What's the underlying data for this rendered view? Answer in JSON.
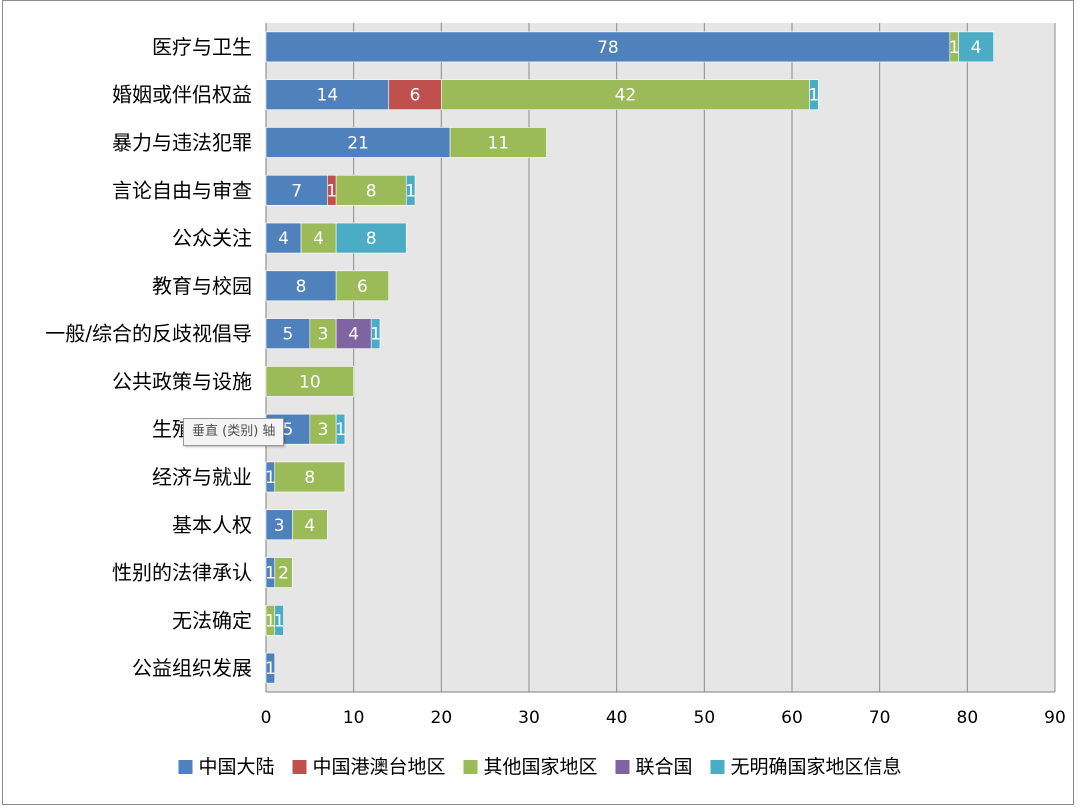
{
  "chart_data": {
    "type": "bar",
    "orientation": "horizontal",
    "stacked": true,
    "categories": [
      "医疗与卫生",
      "婚姻或伴侣权益",
      "暴力与违法犯罪",
      "言论自由与审查",
      "公众关注",
      "教育与校园",
      "一般/综合的反歧视倡导",
      "公共政策与设施",
      "生殖与养育",
      "经济与就业",
      "基本人权",
      "性别的法律承认",
      "无法确定",
      "公益组织发展"
    ],
    "series": [
      {
        "name": "中国大陆",
        "color": "#4f81bd",
        "values": [
          78,
          14,
          21,
          7,
          4,
          8,
          5,
          0,
          5,
          1,
          3,
          1,
          0,
          1
        ]
      },
      {
        "name": "中国港澳台地区",
        "color": "#c0504d",
        "values": [
          0,
          6,
          0,
          1,
          0,
          0,
          0,
          0,
          0,
          0,
          0,
          0,
          0,
          0
        ]
      },
      {
        "name": "其他国家地区",
        "color": "#9bbb59",
        "values": [
          1,
          42,
          11,
          8,
          4,
          6,
          3,
          10,
          3,
          8,
          4,
          2,
          1,
          0
        ]
      },
      {
        "name": "联合国",
        "color": "#8064a2",
        "values": [
          0,
          0,
          0,
          0,
          0,
          0,
          4,
          0,
          0,
          0,
          0,
          0,
          0,
          0
        ]
      },
      {
        "name": "无明确国家地区信息",
        "color": "#4bacc6",
        "values": [
          4,
          1,
          0,
          1,
          8,
          0,
          1,
          0,
          1,
          0,
          0,
          0,
          1,
          0
        ]
      }
    ],
    "xlim": [
      0,
      90
    ],
    "xticks": [
      0,
      10,
      20,
      30,
      40,
      50,
      60,
      70,
      80,
      90
    ],
    "grid": true,
    "legend_position": "bottom"
  },
  "tooltip": {
    "text": "垂直 (类别) 轴"
  }
}
